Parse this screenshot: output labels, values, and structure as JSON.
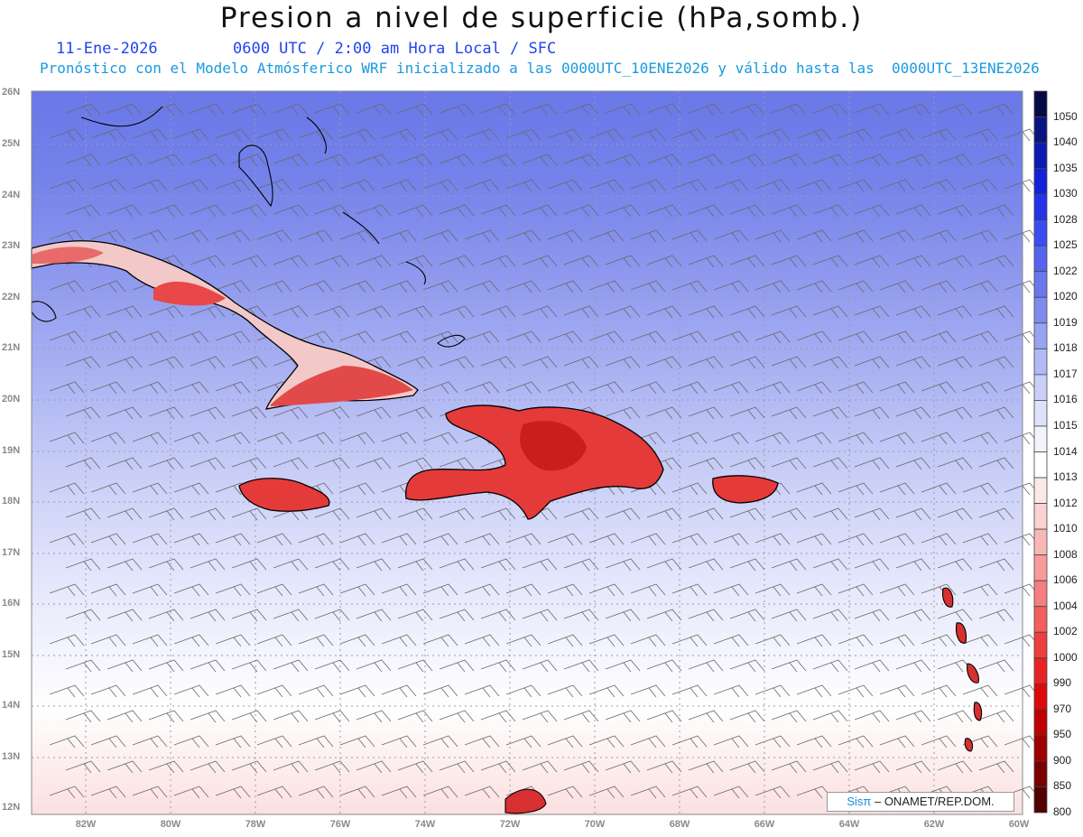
{
  "title": "Presion a nivel de superficie (hPa,somb.)",
  "date_label": "11-Ene-2026",
  "time_label": "0600 UTC / 2:00 am Hora Local / SFC",
  "forecast_label": "Pronóstico con el Modelo Atmósferico WRF inicializado a las 0000UTC_10ENE2026 y válido hasta las  0000UTC_13ENE2026",
  "lat_labels": [
    "26N",
    "25N",
    "24N",
    "23N",
    "22N",
    "21N",
    "20N",
    "19N",
    "18N",
    "17N",
    "16N",
    "15N",
    "14N",
    "13N",
    "12N"
  ],
  "lon_labels": [
    "82W",
    "80W",
    "78W",
    "76W",
    "74W",
    "72W",
    "70W",
    "68W",
    "66W",
    "64W",
    "62W",
    "60W"
  ],
  "colorbar_labels": [
    "1050",
    "1040",
    "1035",
    "1030",
    "1028",
    "1025",
    "1022",
    "1020",
    "1019",
    "1018",
    "1017",
    "1016",
    "1015",
    "1014",
    "1013",
    "1012",
    "1010",
    "1008",
    "1006",
    "1004",
    "1002",
    "1000",
    "990",
    "970",
    "950",
    "900",
    "850",
    "800"
  ],
  "colorbar_colors": [
    "#050a45",
    "#0a1480",
    "#0d1ab0",
    "#1222d8",
    "#2233e8",
    "#3a4ef0",
    "#5565ee",
    "#6a78ec",
    "#7f8cee",
    "#98a3f2",
    "#b1baf5",
    "#c9cff8",
    "#dde1fa",
    "#f2f3fd",
    "#ffffff",
    "#fde8e8",
    "#fbd2d2",
    "#f9b8b8",
    "#f79c9c",
    "#f57e7e",
    "#f25f5f",
    "#ee3f3f",
    "#e82323",
    "#dc0a0a",
    "#c00000",
    "#9e0000",
    "#7a0000",
    "#520000"
  ],
  "credit_sis": "Sisπ",
  "credit_org": " – ONAMET/REP.DOM."
}
